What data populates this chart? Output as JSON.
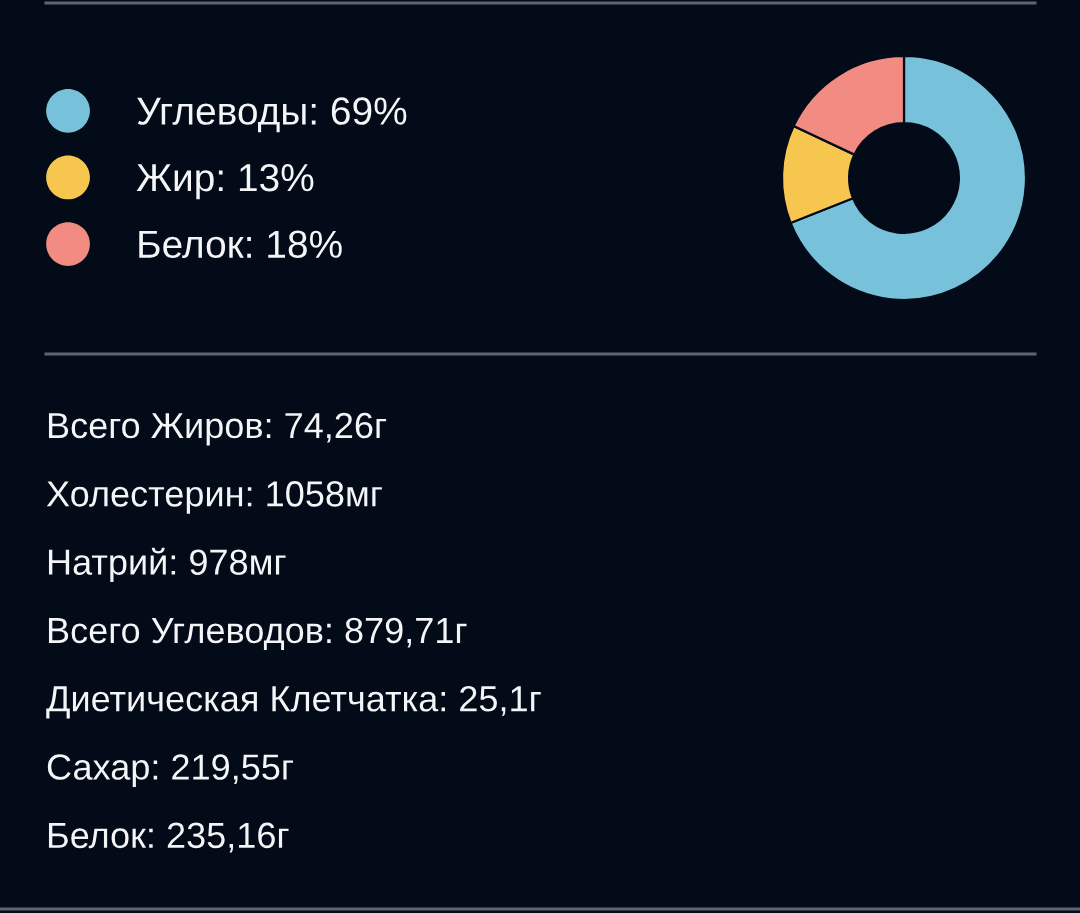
{
  "chart_data": {
    "type": "donut",
    "categories": [
      "Углеводы",
      "Жир",
      "Белок"
    ],
    "values": [
      69,
      13,
      18
    ],
    "colors": [
      "#77c1da",
      "#f7c64f",
      "#f28b82"
    ],
    "value_labels": [
      "69%",
      "13%",
      "18%"
    ],
    "legend": "left",
    "annotations": [
      "Всего Жиров: 74,26г",
      "Холестерин: 1058мг",
      "Натрий: 978мг",
      "Всего Углеводов: 879,71г",
      "Диетическая Клетчатка: 25,1г",
      "Сахар: 219,55г",
      "Белок: 235,16г"
    ]
  }
}
